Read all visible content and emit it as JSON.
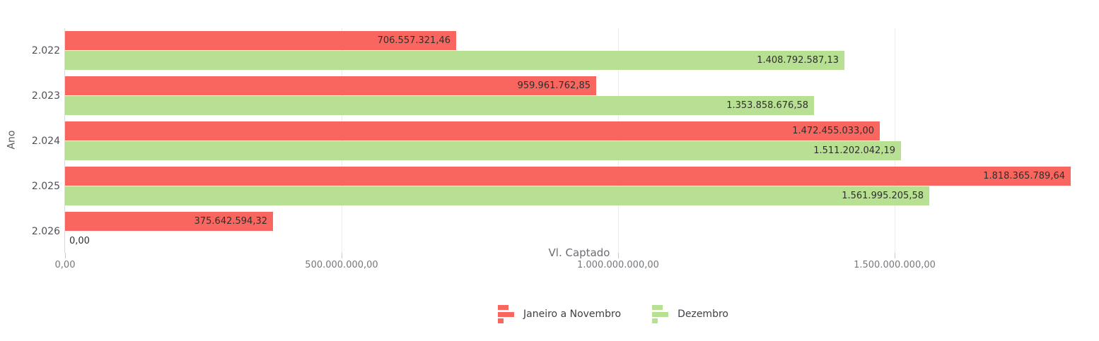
{
  "chart_data": {
    "type": "bar",
    "orientation": "horizontal",
    "title": "",
    "xlabel": "Vl. Captado",
    "ylabel": "Ano",
    "categories": [
      "2.022",
      "2.023",
      "2.024",
      "2.025",
      "2.026"
    ],
    "series": [
      {
        "name": "Janeiro a Novembro",
        "color": "#f9665f",
        "values": [
          706557321.46,
          959961762.85,
          1472455033.0,
          1818365789.64,
          375642594.32
        ],
        "labels": [
          "706.557.321,46",
          "959.961.762,85",
          "1.472.455.033,00",
          "1.818.365.789,64",
          "375.642.594,32"
        ]
      },
      {
        "name": "Dezembro",
        "color": "#b8e092",
        "values": [
          1408792587.13,
          1353858676.58,
          1511202042.19,
          1561995205.58,
          0
        ],
        "labels": [
          "1.408.792.587,13",
          "1.353.858.676,58",
          "1.511.202.042,19",
          "1.561.995.205,58",
          "0,00"
        ]
      }
    ],
    "x_ticks": [
      {
        "value": 0,
        "label": "0,00"
      },
      {
        "value": 500000000,
        "label": "500.000.000,00"
      },
      {
        "value": 1000000000,
        "label": "1.000.000.000,00"
      },
      {
        "value": 1500000000,
        "label": "1.500.000.000,00"
      }
    ],
    "x_max": 1864000000,
    "grid": true,
    "legend_position": "bottom",
    "colors": {
      "gridline": "#ececec",
      "axis_line": "#d9d9d9",
      "tick": "#c9c9c9",
      "data_label": "#2f2f2f"
    }
  }
}
